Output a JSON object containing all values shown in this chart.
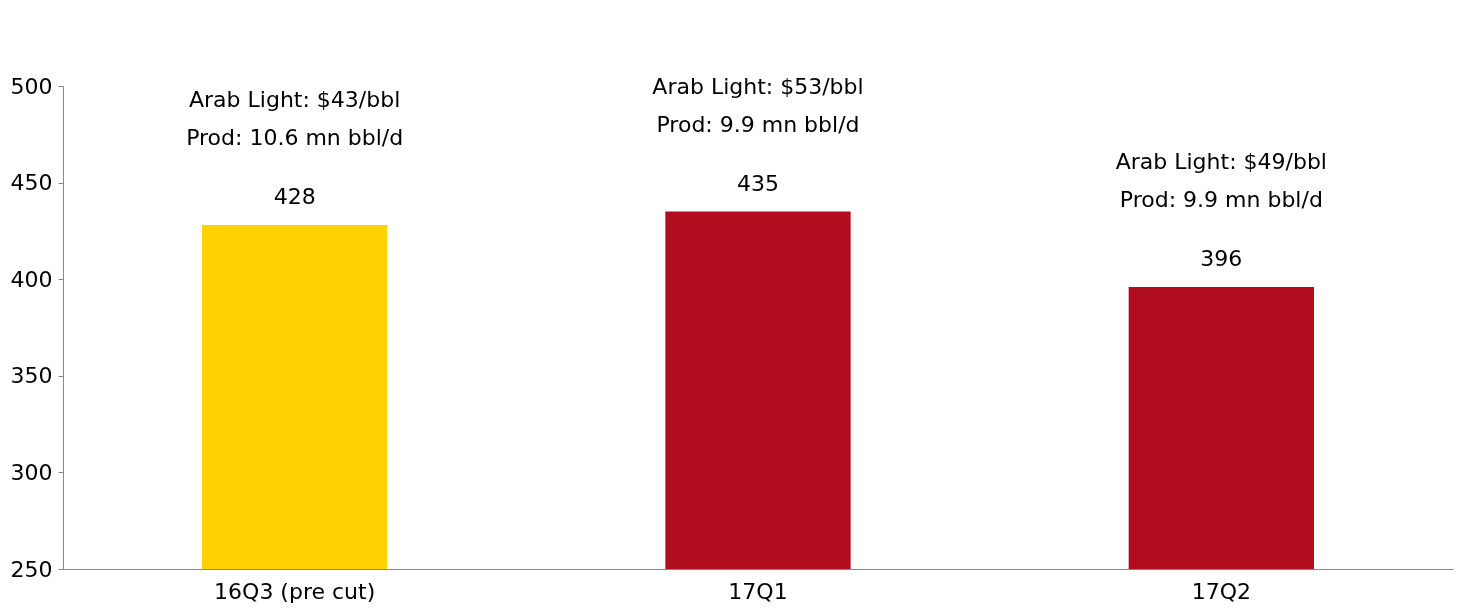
{
  "chart_data": {
    "type": "bar",
    "categories": [
      "16Q3 (pre cut)",
      "17Q1",
      "17Q2"
    ],
    "values": [
      428,
      435,
      396
    ],
    "colors": [
      "#ffd200",
      "#b00d1e",
      "#b00d1e"
    ],
    "ylim": [
      250,
      500
    ],
    "yticks": [
      250,
      300,
      350,
      400,
      450,
      500
    ],
    "grid": false,
    "data_labels": true,
    "annotations": [
      "Arab Light: $43/bbl\nProd: 10.6 mn bbl/d",
      "Arab Light: $53/bbl\nProd: 9.9 mn bbl/d",
      "Arab Light: $49/bbl\nProd: 9.9 mn bbl/d"
    ]
  }
}
